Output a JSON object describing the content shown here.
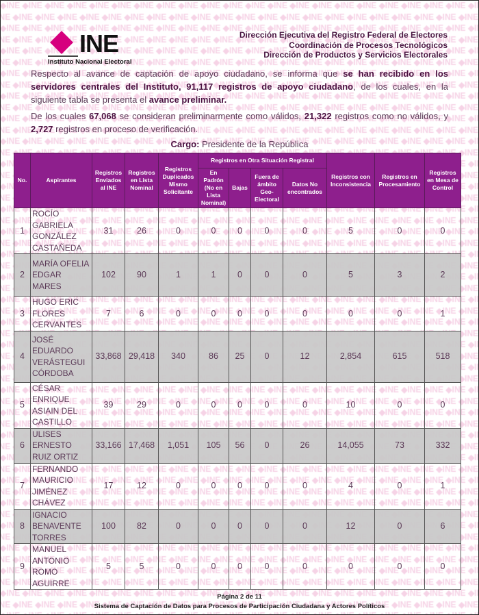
{
  "watermark_text": "INE",
  "logo": {
    "wordmark": "INE",
    "subtitle": "Instituto Nacional Electoral",
    "color": "#d6007e"
  },
  "header_lines": [
    "Dirección Ejecutiva del Registro Federal de Electores",
    "Coordinación de Procesos Tecnológicos",
    "Dirección de Productos y Servicios Electorales"
  ],
  "paragraph1": {
    "t1": "Respecto al avance de captación de apoyo ciudadano, se informa que ",
    "b1": "se han recibido en los servidores centrales del Instituto, 91,117 registros de apoyo ciudadano",
    "t2": ", de los cuales, en la siguiente tabla se presenta el ",
    "b2": "avance preliminar."
  },
  "paragraph2": {
    "t1": "De los cuales ",
    "b1": "67,068",
    "t2": " se consideran preliminarmente como válidos, ",
    "b2": "21,322",
    "t3": " registros como no válidos, y ",
    "b3": "2,727",
    "t4": " registros en proceso de verificación."
  },
  "cargo": {
    "label": "Cargo:",
    "value": " Presidente de la República"
  },
  "table": {
    "headers": {
      "no": "No.",
      "aspirantes": "Aspirantes",
      "enviados": "Registros Enviados al INE",
      "lista": "Registros en Lista Nominal",
      "duplicados": "Registros Duplicados Mismo Solicitante",
      "otra": "Registros en Otra Situación Registral",
      "padron": "En Padrón (No en Lista Nominal)",
      "bajas": "Bajas",
      "fuera": "Fuera de ámbito Geo-Electoral",
      "datos": "Datos No encontrados",
      "inconsistencia": "Registros con Inconsistencia",
      "procesamiento": "Registros en Procesamiento",
      "mesa": "Registros en Mesa de Control"
    },
    "rows": [
      {
        "no": "1",
        "name": "ROCÍO GABRIELA GONZÁLEZ CASTAÑEDA",
        "v": [
          "31",
          "26",
          "0",
          "0",
          "0",
          "0",
          "0",
          "5",
          "0",
          "0"
        ]
      },
      {
        "no": "2",
        "name": "MARÍA OFELIA EDGAR MARES",
        "v": [
          "102",
          "90",
          "1",
          "1",
          "0",
          "0",
          "0",
          "5",
          "3",
          "2"
        ]
      },
      {
        "no": "3",
        "name": "HUGO ERIC FLORES CERVANTES",
        "v": [
          "7",
          "6",
          "0",
          "0",
          "0",
          "0",
          "0",
          "0",
          "0",
          "1"
        ]
      },
      {
        "no": "4",
        "name": "JOSÉ EDUARDO VERÁSTEGUI CÓRDOBA",
        "v": [
          "33,868",
          "29,418",
          "340",
          "86",
          "25",
          "0",
          "12",
          "2,854",
          "615",
          "518"
        ]
      },
      {
        "no": "5",
        "name": "CÉSAR ENRIQUE ASIAIN DEL CASTILLO",
        "v": [
          "39",
          "29",
          "0",
          "0",
          "0",
          "0",
          "0",
          "10",
          "0",
          "0"
        ]
      },
      {
        "no": "6",
        "name": "ULISES ERNESTO RUIZ ORTIZ",
        "v": [
          "33,166",
          "17,468",
          "1,051",
          "105",
          "56",
          "0",
          "26",
          "14,055",
          "73",
          "332"
        ]
      },
      {
        "no": "7",
        "name": "FERNANDO MAURICIO JIMÉNEZ CHÁVEZ",
        "v": [
          "17",
          "12",
          "0",
          "0",
          "0",
          "0",
          "0",
          "4",
          "0",
          "1"
        ]
      },
      {
        "no": "8",
        "name": "IGNACIO BENAVENTE TORRES",
        "v": [
          "100",
          "82",
          "0",
          "0",
          "0",
          "0",
          "0",
          "12",
          "0",
          "6"
        ]
      },
      {
        "no": "9",
        "name": "MANUEL ANTONIO ROMO AGUIRRE",
        "v": [
          "5",
          "5",
          "0",
          "0",
          "0",
          "0",
          "0",
          "0",
          "0",
          "0"
        ]
      }
    ]
  },
  "footer": {
    "page": "Página 2 de 11",
    "system": "Sistema de Captación de Datos para Procesos de Participación Ciudadana y Actores Políticos"
  }
}
